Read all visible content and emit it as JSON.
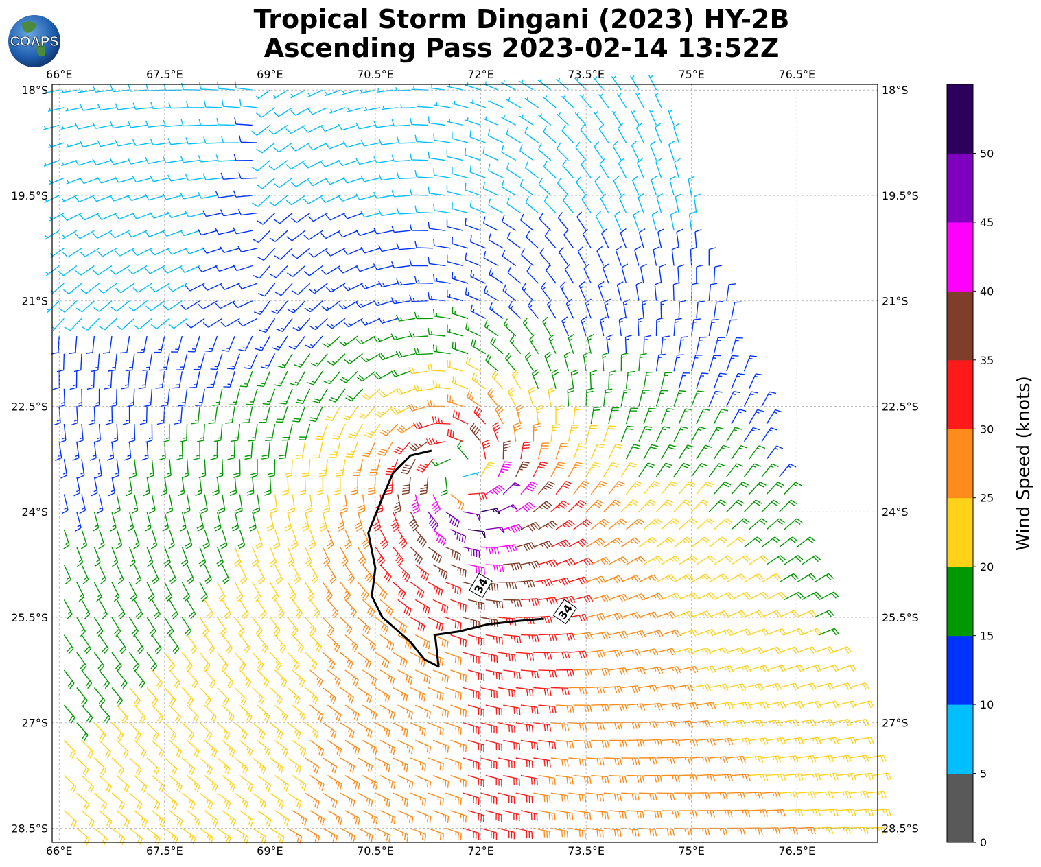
{
  "header": {
    "title_line1": "Tropical Storm Dingani (2023) HY-2B",
    "title_line2": "Ascending Pass 2023-02-14 13:52Z",
    "logo_text": "COAPS"
  },
  "chart_data": {
    "type": "wind-barb-map",
    "title": "Tropical Storm Dingani (2023) HY-2B Ascending Pass 2023-02-14 13:52Z",
    "x_ticks": [
      "66°E",
      "67.5°E",
      "69°E",
      "70.5°E",
      "72°E",
      "73.5°E",
      "75°E",
      "76.5°E"
    ],
    "x_tick_values": [
      66,
      67.5,
      69,
      70.5,
      72,
      73.5,
      75,
      76.5
    ],
    "y_ticks": [
      "18°S",
      "19.5°S",
      "21°S",
      "22.5°S",
      "24°S",
      "25.5°S",
      "27°S",
      "28.5°S"
    ],
    "y_tick_values": [
      -18,
      -19.5,
      -21,
      -22.5,
      -24,
      -25.5,
      -27,
      -28.5
    ],
    "xlim": [
      65.9,
      77.65
    ],
    "ylim": [
      -28.7,
      -17.92
    ],
    "grid": true,
    "storm_center": {
      "lon": 71.7,
      "lat": -23.5
    },
    "max_wind_knots": 50,
    "contour_label": "34",
    "contour_34kt": [
      [
        71.3,
        -23.13
      ],
      [
        71.0,
        -23.2
      ],
      [
        70.75,
        -23.45
      ],
      [
        70.6,
        -23.8
      ],
      [
        70.4,
        -24.3
      ],
      [
        70.5,
        -24.8
      ],
      [
        70.45,
        -25.2
      ],
      [
        70.6,
        -25.5
      ],
      [
        71.0,
        -25.85
      ],
      [
        71.2,
        -26.1
      ],
      [
        71.4,
        -26.2
      ],
      [
        71.35,
        -25.75
      ],
      [
        71.7,
        -25.7
      ],
      [
        72.1,
        -25.6
      ],
      [
        72.55,
        -25.55
      ],
      [
        72.9,
        -25.52
      ]
    ],
    "colorbar": {
      "label": "Wind Speed (knots)",
      "ticks": [
        "0",
        "5",
        "10",
        "15",
        "20",
        "25",
        "30",
        "35",
        "40",
        "45",
        "50"
      ],
      "bins": [
        {
          "range": [
            0,
            5
          ],
          "color": "#595959"
        },
        {
          "range": [
            5,
            10
          ],
          "color": "#00bfff"
        },
        {
          "range": [
            10,
            15
          ],
          "color": "#0033ff"
        },
        {
          "range": [
            15,
            20
          ],
          "color": "#009900"
        },
        {
          "range": [
            20,
            25
          ],
          "color": "#ffd21a"
        },
        {
          "range": [
            25,
            30
          ],
          "color": "#ff8c1a"
        },
        {
          "range": [
            30,
            35
          ],
          "color": "#ff1a1a"
        },
        {
          "range": [
            35,
            40
          ],
          "color": "#803d29"
        },
        {
          "range": [
            40,
            45
          ],
          "color": "#ff00ff"
        },
        {
          "range": [
            45,
            50
          ],
          "color": "#8000bf"
        },
        {
          "range": [
            50,
            55
          ],
          "color": "#2e005e"
        }
      ]
    }
  }
}
